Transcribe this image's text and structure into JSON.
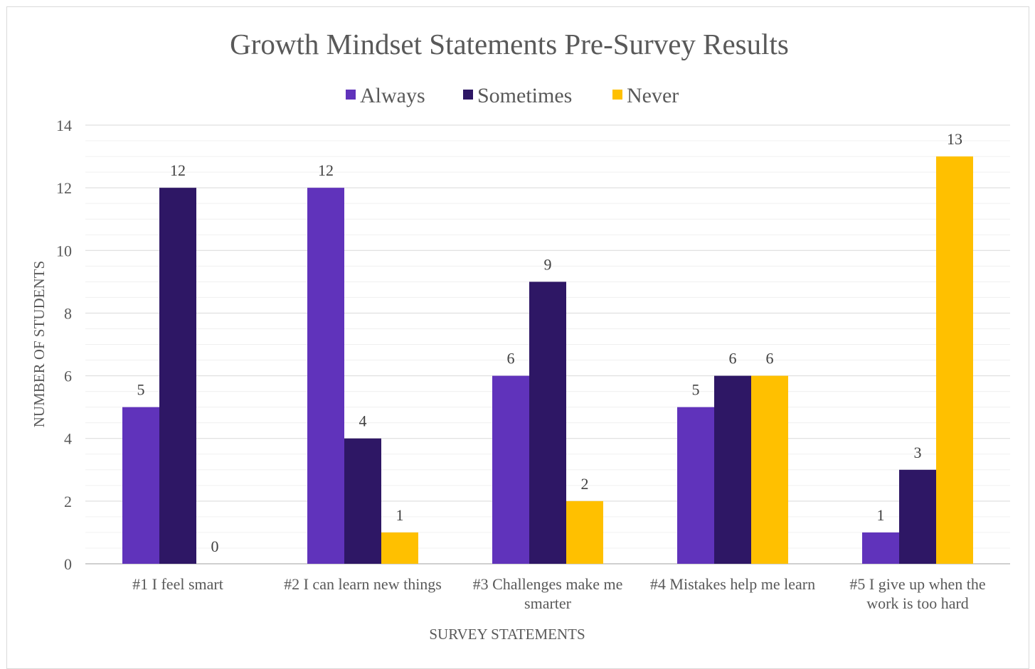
{
  "chart_data": {
    "type": "bar",
    "title": "Growth Mindset Statements Pre-Survey Results",
    "xlabel": "SURVEY STATEMENTS",
    "ylabel": "NUMBER OF STUDENTS",
    "ylim": [
      0,
      14
    ],
    "yticks": [
      0,
      2,
      4,
      6,
      8,
      10,
      12,
      14
    ],
    "categories": [
      [
        "#1 I feel smart"
      ],
      [
        "#2 I can learn new things"
      ],
      [
        "#3 Challenges make me",
        "smarter"
      ],
      [
        "#4 Mistakes help me learn"
      ],
      [
        "#5 I give up when the",
        "work is too hard"
      ]
    ],
    "series": [
      {
        "name": "Always",
        "color": "#6033bb",
        "values": [
          5,
          12,
          6,
          5,
          1
        ]
      },
      {
        "name": "Sometimes",
        "color": "#2e1765",
        "values": [
          12,
          4,
          9,
          6,
          3
        ]
      },
      {
        "name": "Never",
        "color": "#ffc000",
        "values": [
          0,
          1,
          2,
          6,
          13
        ]
      }
    ],
    "legend_position": "top",
    "grid": true,
    "data_labels": true
  }
}
